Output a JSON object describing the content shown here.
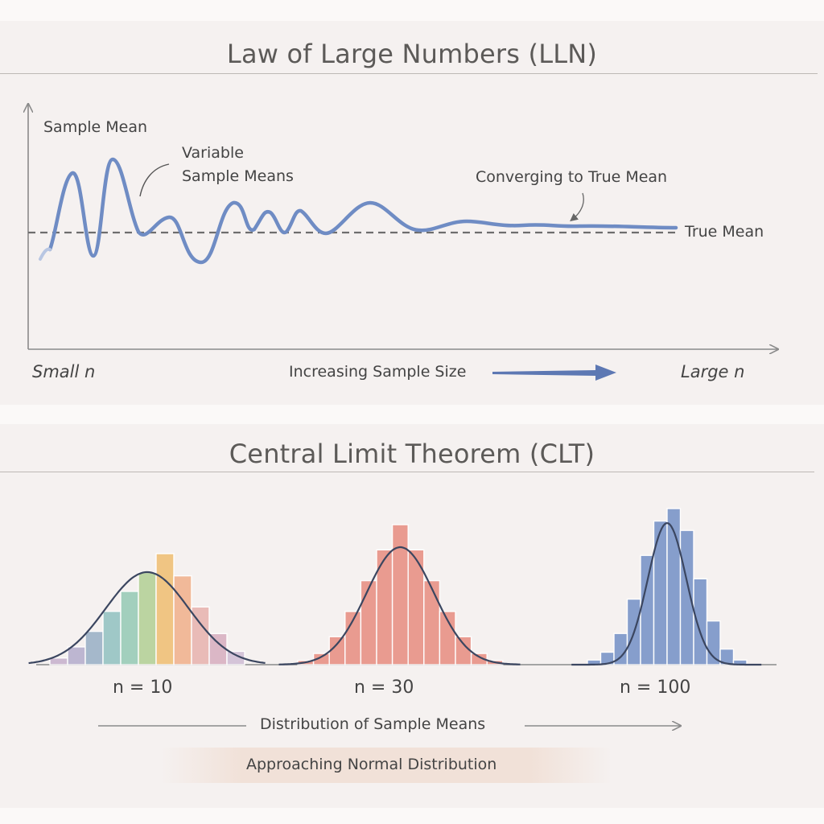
{
  "lln": {
    "title": "Law of Large Numbers (LLN)",
    "y_axis_label": "Sample Mean",
    "annotation_variable": "Variable\nSample Means",
    "annotation_converging": "Converging to True Mean",
    "true_mean_label": "True Mean",
    "x_left_label": "Small n",
    "x_center_label": "Increasing Sample Size",
    "x_right_label": "Large n",
    "colors": {
      "curve": "#6f8cc4",
      "true_mean_line": "#6e6e6e",
      "arrow": "#5d78b3"
    }
  },
  "clt": {
    "title": "Central Limit Theorem (CLT)",
    "histograms": [
      {
        "label": "n = 10",
        "bars": [
          0.06,
          0.16,
          0.3,
          0.48,
          0.66,
          0.83,
          1.0,
          0.8,
          0.52,
          0.28,
          0.12
        ],
        "colors": [
          "#c9b5cf",
          "#b9b1cf",
          "#9fb4c8",
          "#98c5c4",
          "#9ccdb9",
          "#b7d29b",
          "#f0c27a",
          "#f1b592",
          "#e8b7b3",
          "#d9b3c3",
          "#d2c1d6"
        ]
      },
      {
        "label": "n = 30",
        "bars": [
          0.03,
          0.08,
          0.2,
          0.38,
          0.6,
          0.82,
          1.0,
          0.82,
          0.6,
          0.38,
          0.2,
          0.08,
          0.03
        ],
        "colors": [
          "#e89488"
        ]
      },
      {
        "label": "n = 100",
        "bars": [
          0.03,
          0.08,
          0.2,
          0.42,
          0.7,
          0.92,
          1.0,
          0.86,
          0.55,
          0.28,
          0.1,
          0.03
        ],
        "colors": [
          "#7d98c9"
        ]
      }
    ],
    "x_axis_label": "Distribution of Sample Means",
    "footer_label": "Approaching Normal Distribution",
    "colors": {
      "curve": "#3b4660",
      "axis": "#8a8a8a"
    }
  }
}
